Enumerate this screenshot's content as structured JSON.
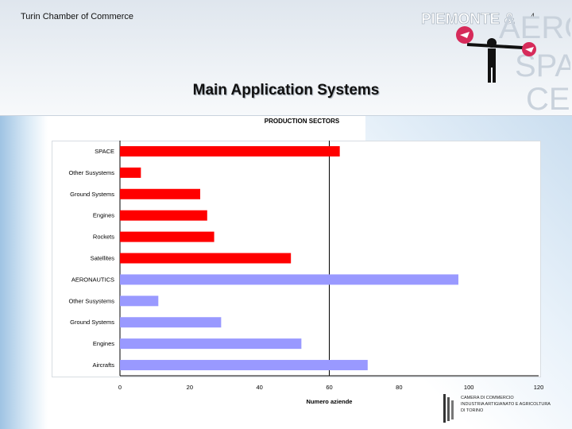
{
  "header": {
    "organization": "Turin Chamber of Commerce",
    "page_number": "4",
    "title": "Main Application Systems"
  },
  "logo": {
    "text_line1": "PIEMONTE &",
    "text_aero": "AERO",
    "text_space": "SPA",
    "text_ce": "CE",
    "colors": {
      "brand_pink": "#d62b5a",
      "brand_light": "#c9d2dc"
    }
  },
  "footer_logo": {
    "lines": [
      "CAMERA DI COMMERCIO",
      "INDUSTRIA ARTIGIANATO E AGRICOLTURA",
      "DI TORINO"
    ]
  },
  "chart_data": {
    "type": "bar",
    "orientation": "horizontal",
    "title": "PRODUCTION SECTORS",
    "xlabel": "Numero aziende",
    "ylabel": "",
    "xlim": [
      0,
      120
    ],
    "xticks": [
      "0",
      "20",
      "40",
      "60",
      "80",
      "100",
      "120"
    ],
    "reference_line_x": 60,
    "categories": [
      "SPACE",
      "Other Susystems",
      "Ground Systems",
      "Engines",
      "Rockets",
      "Satellites",
      "AERONAUTICS",
      "Other Susystems",
      "Ground Systems",
      "Engines",
      "Aircrafts"
    ],
    "values": [
      63,
      6,
      23,
      25,
      27,
      49,
      97,
      11,
      29,
      52,
      71
    ],
    "bar_colors": [
      "#ff0000",
      "#ff0000",
      "#ff0000",
      "#ff0000",
      "#ff0000",
      "#ff0000",
      "#9999ff",
      "#9999ff",
      "#9999ff",
      "#9999ff",
      "#9999ff"
    ],
    "grid": false
  }
}
